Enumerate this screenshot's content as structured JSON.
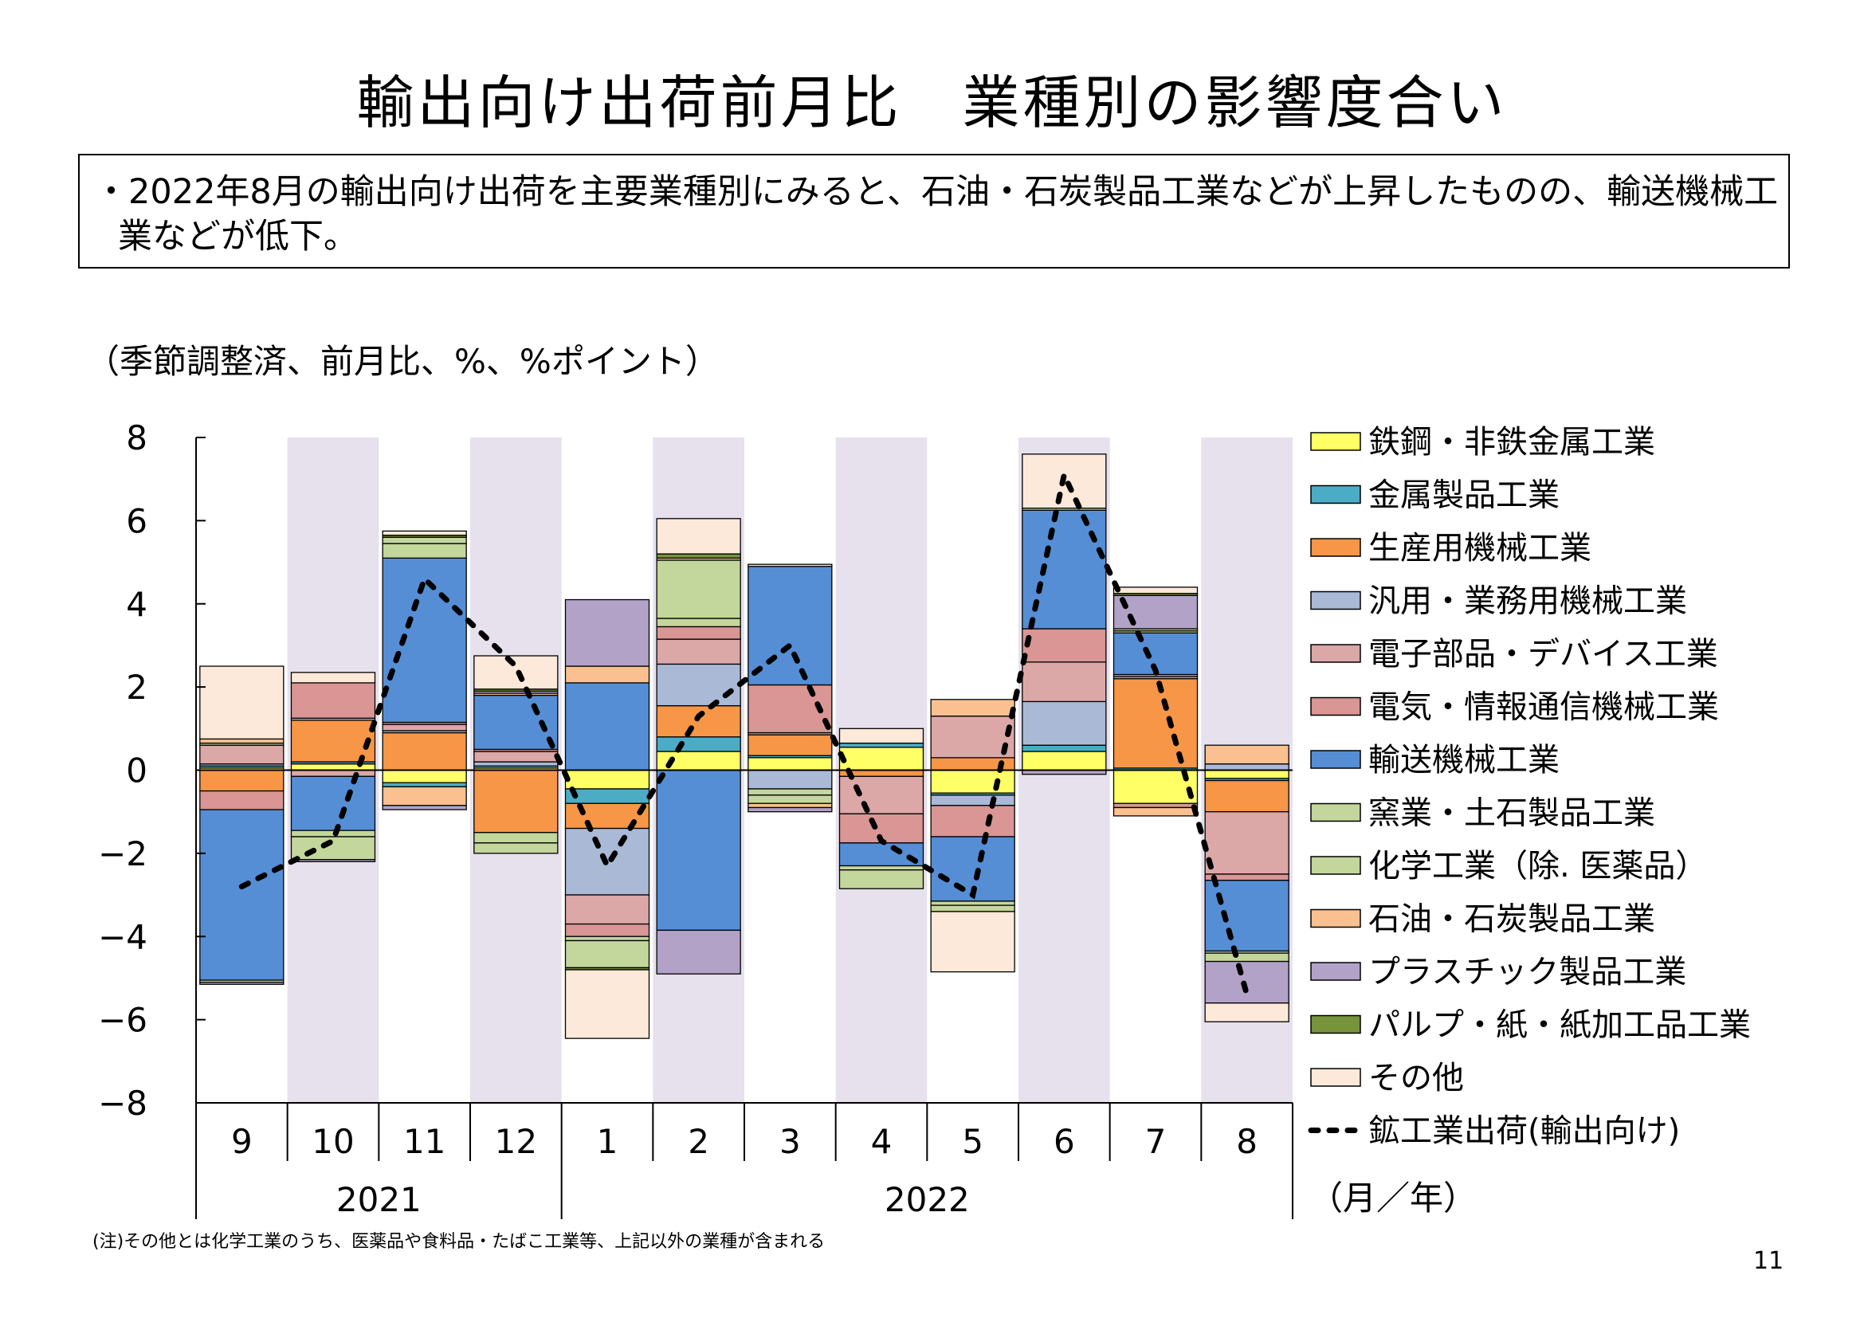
{
  "title": "輸出向け出荷前月比　業種別の影響度合い",
  "summary": "・2022年8月の輸出向け出荷を主要業種別にみると、石油・石炭製品工業などが上昇したものの、輸送機械工業などが低下。",
  "unit_label": "（季節調整済、前月比、%、%ポイント）",
  "note": "(注)その他とは化学工業のうち、医薬品や食料品・たばこ工業等、上記以外の業種が含まれる",
  "page_number": "11",
  "chart_data": {
    "type": "bar",
    "stacked": true,
    "categories": [
      "9",
      "10",
      "11",
      "12",
      "1",
      "2",
      "3",
      "4",
      "5",
      "6",
      "7",
      "8"
    ],
    "year_labels": [
      {
        "label": "2021",
        "span": [
          0,
          3
        ]
      },
      {
        "label": "2022",
        "span": [
          4,
          11
        ]
      }
    ],
    "x_unit_label": "（月／年）",
    "ylim": [
      -8,
      8
    ],
    "yticks": [
      8,
      6,
      4,
      2,
      0,
      -2,
      -4,
      -6,
      -8
    ],
    "yticklabels": [
      "8",
      "6",
      "4",
      "2",
      "0",
      "−2",
      "−4",
      "−6",
      "−8"
    ],
    "shaded_categories": [
      1,
      3,
      5,
      7,
      9,
      11
    ],
    "shade_color": "#e6e1ec",
    "series": [
      {
        "name": "鉄鋼・非鉄金属工業",
        "color": "#ffff66",
        "values": [
          0.05,
          0.15,
          -0.3,
          0.05,
          -0.45,
          0.45,
          0.3,
          0.55,
          -0.55,
          0.45,
          -0.8,
          -0.2
        ]
      },
      {
        "name": "金属製品工業",
        "color": "#4bacc6",
        "values": [
          0.05,
          0.05,
          -0.1,
          0.05,
          -0.35,
          0.35,
          0.05,
          0.1,
          -0.05,
          0.15,
          0.05,
          -0.05
        ]
      },
      {
        "name": "生産用機械工業",
        "color": "#f79646",
        "values": [
          -0.5,
          1.0,
          0.9,
          -1.5,
          -0.6,
          0.75,
          0.5,
          -0.15,
          0.3,
          0.0,
          2.15,
          -0.75
        ]
      },
      {
        "name": "汎用・業務用機械工業",
        "color": "#a9b9d6",
        "values": [
          0.05,
          0.05,
          0.05,
          0.1,
          -1.6,
          1.0,
          -0.45,
          0.0,
          -0.25,
          1.05,
          0.05,
          0.15
        ]
      },
      {
        "name": "電子部品・デバイス工業",
        "color": "#dca7a7",
        "values": [
          0.45,
          -0.15,
          0.15,
          0.25,
          -0.7,
          0.6,
          0.05,
          -0.9,
          1.0,
          0.95,
          0.05,
          -1.5
        ]
      },
      {
        "name": "電気・情報通信機械工業",
        "color": "#d99694",
        "values": [
          -0.45,
          0.85,
          0.05,
          0.05,
          -0.3,
          0.3,
          1.15,
          -0.7,
          -0.75,
          0.8,
          -0.1,
          -0.15
        ]
      },
      {
        "name": "輸送機械工業",
        "color": "#558ed5",
        "values": [
          -4.1,
          -1.3,
          3.95,
          1.3,
          2.1,
          -3.85,
          2.85,
          -0.55,
          -1.55,
          2.85,
          1.0,
          -1.7
        ]
      },
      {
        "name": "窯業・土石製品工業",
        "color": "#c3d69b",
        "values": [
          0.05,
          -0.15,
          0.35,
          -0.25,
          -0.1,
          0.2,
          -0.15,
          -0.1,
          -0.1,
          0.05,
          0.05,
          -0.05
        ]
      },
      {
        "name": "化学工業（除. 医薬品）",
        "color": "#c3d69b",
        "values": [
          -0.05,
          -0.55,
          0.15,
          -0.25,
          -0.65,
          1.4,
          -0.2,
          -0.45,
          -0.15,
          0.0,
          0.05,
          -0.2
        ]
      },
      {
        "name": "石油・石炭製品工業",
        "color": "#fac090",
        "values": [
          0.1,
          0.0,
          -0.45,
          0.05,
          0.4,
          0.05,
          -0.1,
          0.0,
          0.4,
          0.0,
          -0.2,
          0.45
        ]
      },
      {
        "name": "プラスチック製品工業",
        "color": "#b3a2c7",
        "values": [
          -0.05,
          -0.05,
          -0.1,
          0.05,
          1.6,
          -1.05,
          -0.1,
          0.0,
          0.0,
          -0.1,
          0.8,
          -1.0
        ]
      },
      {
        "name": "パルプ・紙・紙加工品工業",
        "color": "#77933c",
        "values": [
          0.0,
          0.0,
          0.05,
          0.05,
          -0.05,
          0.1,
          0.0,
          0.0,
          0.0,
          0.0,
          0.05,
          0.0
        ]
      },
      {
        "name": "その他",
        "color": "#fde9d9",
        "values": [
          1.75,
          0.25,
          0.1,
          0.8,
          -1.65,
          0.85,
          0.05,
          0.35,
          -1.45,
          1.3,
          0.15,
          -0.45
        ]
      }
    ],
    "line": {
      "name": "鉱工業出荷(輸出向け)",
      "values": [
        -2.8,
        -1.7,
        4.6,
        2.5,
        -2.3,
        1.3,
        3.0,
        -1.7,
        -3.0,
        7.1,
        2.4,
        -5.4
      ]
    }
  }
}
